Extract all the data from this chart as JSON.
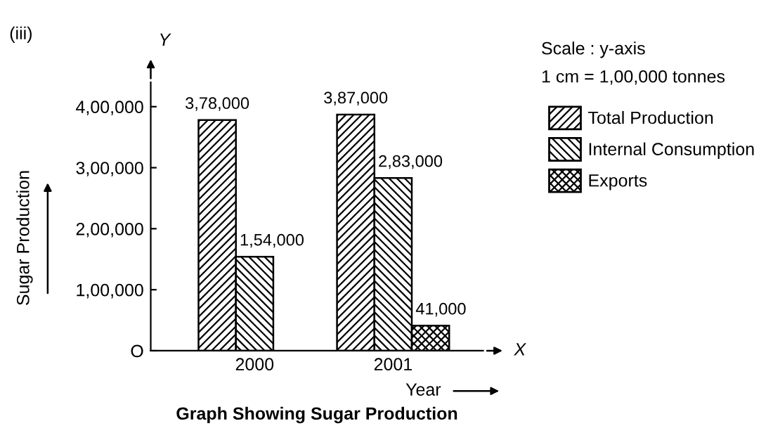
{
  "chart_data": {
    "type": "bar",
    "title": "Graph Showing Sugar Production",
    "xlabel": "Year",
    "ylabel": "Sugar Production",
    "categories": [
      "2000",
      "2001"
    ],
    "series": [
      {
        "name": "Total Production",
        "color": "#000000",
        "values": [
          378000,
          387000
        ],
        "value_labels": [
          "3,78,000",
          "3,87,000"
        ]
      },
      {
        "name": "Internal Consumption",
        "color": "#000000",
        "values": [
          154000,
          283000
        ],
        "value_labels": [
          "1,54,000",
          "2,83,000"
        ]
      },
      {
        "name": "Exports",
        "color": "#000000",
        "values": [
          null,
          41000
        ],
        "value_labels": [
          null,
          "41,000"
        ]
      }
    ],
    "ylim": [
      0,
      440000
    ],
    "yticks": [
      {
        "value": 0,
        "label": "O"
      },
      {
        "value": 100000,
        "label": "1,00,000"
      },
      {
        "value": 200000,
        "label": "2,00,000"
      },
      {
        "value": 300000,
        "label": "3,00,000"
      },
      {
        "value": 400000,
        "label": "4,00,000"
      }
    ],
    "annotations": [
      "(iii)",
      "Scale : y-axis",
      "1 cm = 1,00,000 tonnes",
      "Y",
      "X"
    ],
    "legend": "top right",
    "grid": false
  }
}
